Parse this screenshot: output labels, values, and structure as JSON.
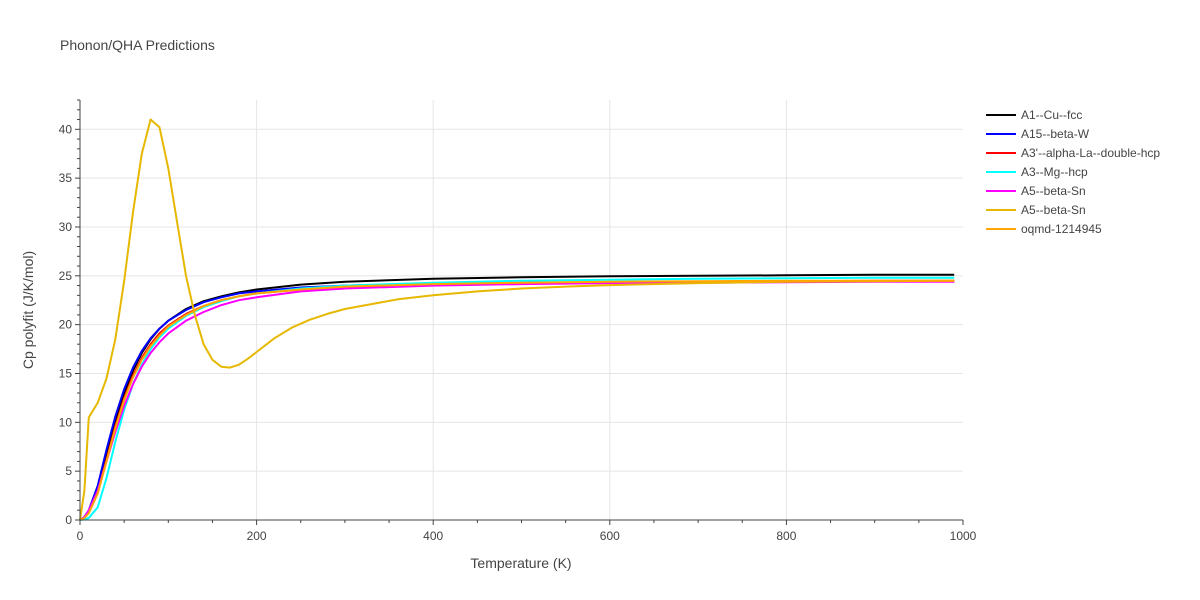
{
  "chart_data": {
    "type": "line",
    "title": "Phonon/QHA Predictions",
    "xlabel": "Temperature (K)",
    "ylabel": "Cp polyfit (J/K/mol)",
    "xlim": [
      0,
      1000
    ],
    "ylim": [
      0,
      43
    ],
    "x_ticks": [
      0,
      200,
      400,
      600,
      800,
      1000
    ],
    "y_ticks": [
      0,
      5,
      10,
      15,
      20,
      25,
      30,
      35,
      40
    ],
    "grid": true,
    "legend_position": "top-right",
    "series": [
      {
        "name": "A1--Cu--fcc",
        "color": "#000000",
        "x": [
          0,
          5,
          10,
          20,
          30,
          40,
          50,
          60,
          70,
          80,
          90,
          100,
          120,
          140,
          160,
          180,
          200,
          250,
          300,
          400,
          500,
          600,
          700,
          800,
          900,
          990
        ],
        "y": [
          0,
          0.2,
          0.8,
          3.0,
          6.5,
          10.0,
          13.0,
          15.3,
          17.1,
          18.5,
          19.6,
          20.4,
          21.6,
          22.4,
          22.9,
          23.3,
          23.6,
          24.1,
          24.4,
          24.7,
          24.85,
          24.95,
          25.0,
          25.05,
          25.1,
          25.1
        ]
      },
      {
        "name": "A15--beta-W",
        "color": "#0000ff",
        "x": [
          0,
          5,
          10,
          20,
          30,
          40,
          50,
          60,
          70,
          80,
          90,
          100,
          120,
          140,
          160,
          180,
          200,
          250,
          300,
          400,
          500,
          600,
          700,
          800,
          900,
          990
        ],
        "y": [
          0,
          0.3,
          1.0,
          3.5,
          7.2,
          10.6,
          13.4,
          15.6,
          17.3,
          18.6,
          19.6,
          20.4,
          21.5,
          22.3,
          22.8,
          23.2,
          23.4,
          23.8,
          24.0,
          24.2,
          24.3,
          24.35,
          24.4,
          24.4,
          24.45,
          24.45
        ]
      },
      {
        "name": "A3'--alpha-La--double-hcp",
        "color": "#ff0000",
        "x": [
          0,
          5,
          10,
          20,
          30,
          40,
          50,
          60,
          70,
          80,
          90,
          100,
          120,
          140,
          160,
          180,
          200,
          250,
          300,
          400,
          500,
          600,
          700,
          800,
          900,
          990
        ],
        "y": [
          0,
          0.2,
          0.8,
          2.9,
          6.2,
          9.6,
          12.5,
          14.8,
          16.6,
          18.0,
          19.1,
          19.9,
          21.1,
          21.9,
          22.5,
          22.9,
          23.2,
          23.6,
          23.9,
          24.1,
          24.25,
          24.35,
          24.4,
          24.45,
          24.5,
          24.5
        ]
      },
      {
        "name": "A3--Mg--hcp",
        "color": "#00ffff",
        "x": [
          0,
          5,
          10,
          20,
          30,
          40,
          50,
          60,
          70,
          80,
          90,
          100,
          120,
          140,
          160,
          180,
          200,
          250,
          300,
          400,
          500,
          600,
          700,
          800,
          900,
          990
        ],
        "y": [
          0,
          0.05,
          0.2,
          1.3,
          4.3,
          8.0,
          11.3,
          13.9,
          15.9,
          17.5,
          18.7,
          19.6,
          20.9,
          21.8,
          22.4,
          22.9,
          23.2,
          23.7,
          24.0,
          24.3,
          24.5,
          24.6,
          24.7,
          24.75,
          24.8,
          24.8
        ]
      },
      {
        "name": "A5--beta-Sn",
        "color": "#ff00ff",
        "x": [
          0,
          5,
          10,
          20,
          30,
          40,
          50,
          60,
          70,
          80,
          90,
          100,
          120,
          140,
          160,
          180,
          200,
          250,
          300,
          400,
          500,
          600,
          700,
          800,
          900,
          990
        ],
        "y": [
          0,
          0.3,
          1.0,
          3.0,
          6.0,
          9.0,
          11.7,
          13.9,
          15.7,
          17.1,
          18.2,
          19.1,
          20.4,
          21.3,
          22.0,
          22.5,
          22.8,
          23.4,
          23.7,
          24.0,
          24.15,
          24.25,
          24.3,
          24.35,
          24.4,
          24.4
        ]
      },
      {
        "name": "A5--beta-Sn",
        "color": "#e6b800",
        "x": [
          0,
          5,
          10,
          20,
          30,
          40,
          50,
          60,
          70,
          80,
          90,
          100,
          110,
          120,
          130,
          140,
          150,
          160,
          170,
          180,
          190,
          200,
          220,
          240,
          260,
          280,
          300,
          330,
          360,
          400,
          450,
          500,
          550,
          600,
          700,
          800,
          900,
          990
        ],
        "y": [
          0,
          3.0,
          10.5,
          12.0,
          14.5,
          18.5,
          24.5,
          31.5,
          37.5,
          41.0,
          40.2,
          36.0,
          30.5,
          25.0,
          21.0,
          18.0,
          16.4,
          15.7,
          15.6,
          15.9,
          16.5,
          17.2,
          18.6,
          19.7,
          20.5,
          21.1,
          21.6,
          22.1,
          22.6,
          23.0,
          23.4,
          23.7,
          23.9,
          24.05,
          24.25,
          24.4,
          24.45,
          24.5
        ]
      },
      {
        "name": "oqmd-1214945",
        "color": "#ffa500",
        "x": [
          0,
          5,
          10,
          20,
          30,
          40,
          50,
          60,
          70,
          80,
          90,
          100,
          120,
          140,
          160,
          180,
          200,
          250,
          300,
          400,
          500,
          600,
          700,
          800,
          900,
          990
        ],
        "y": [
          0,
          0.2,
          0.7,
          2.7,
          6.0,
          9.4,
          12.3,
          14.6,
          16.4,
          17.8,
          18.9,
          19.8,
          21.0,
          21.9,
          22.5,
          22.9,
          23.2,
          23.6,
          23.9,
          24.15,
          24.3,
          24.4,
          24.45,
          24.5,
          24.5,
          24.5
        ]
      }
    ]
  }
}
